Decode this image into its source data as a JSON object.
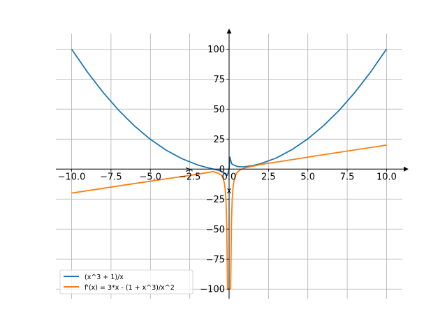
{
  "chart_data": {
    "type": "line",
    "xlabel": "x",
    "ylabel": "y",
    "xlim": [
      -11,
      11
    ],
    "ylim": [
      -108,
      113
    ],
    "grid": true,
    "legend_position": "lower-left",
    "x_ticks": [
      -10,
      -7.5,
      -5,
      -2.5,
      0,
      2.5,
      5,
      7.5,
      10
    ],
    "x_tick_labels": [
      "−10.0",
      "−7.5",
      "−5.0",
      "−2.5",
      "0.0",
      "2.5",
      "5.0",
      "7.5",
      "10.0"
    ],
    "y_ticks": [
      -100,
      -75,
      -50,
      -25,
      0,
      25,
      50,
      75,
      100
    ],
    "y_tick_labels": [
      "−100",
      "−75",
      "−50",
      "−25",
      "0",
      "25",
      "50",
      "75",
      "100"
    ],
    "series": [
      {
        "name": "(x^3 + 1)/x",
        "color": "#1f77b4",
        "x": [
          -10,
          -9,
          -8,
          -7,
          -6,
          -5,
          -4,
          -3,
          -2,
          -1.5,
          -1,
          -0.7,
          -0.5,
          -0.3,
          -0.2,
          -0.15,
          -0.1,
          -0.05,
          0,
          0.05,
          0.1,
          0.15,
          0.2,
          0.3,
          0.5,
          0.7,
          1,
          1.5,
          2,
          3,
          4,
          5,
          6,
          7,
          8,
          9,
          10
        ],
        "y": [
          99.9,
          80.9,
          63.9,
          48.9,
          35.8,
          24.8,
          15.8,
          8.7,
          3.5,
          1.6,
          0,
          -0.9,
          -1.8,
          -3.2,
          -5,
          -5.5,
          -5,
          -2.5,
          0,
          10,
          7.5,
          5,
          4,
          3.4,
          2.3,
          1.9,
          2,
          2.9,
          4.5,
          9.3,
          16.3,
          25.2,
          36.2,
          49.1,
          64.1,
          81.1,
          100.1
        ]
      },
      {
        "name": "f'(x) = 3*x - (1 + x^3)/x^2",
        "color": "#ff7f0e",
        "x": [
          -10,
          -8,
          -6,
          -4,
          -2,
          -1,
          -0.7,
          -0.5,
          -0.4,
          -0.3,
          -0.25,
          -0.2,
          -0.15,
          -0.1,
          0.05,
          0.1,
          0.15,
          0.2,
          0.25,
          0.3,
          0.4,
          0.5,
          0.7,
          1,
          2,
          4,
          6,
          8,
          10
        ],
        "y": [
          -20,
          -16,
          -12,
          -8.1,
          -4.3,
          -2,
          -3.4,
          -5,
          -6.9,
          -11.7,
          -16.5,
          -25.4,
          -44.7,
          -100,
          -100,
          -99.8,
          -44.1,
          -24.6,
          -15.5,
          -10.5,
          -5.4,
          -3,
          -0.6,
          1,
          3.8,
          7.9,
          12,
          16,
          20
        ]
      }
    ]
  }
}
